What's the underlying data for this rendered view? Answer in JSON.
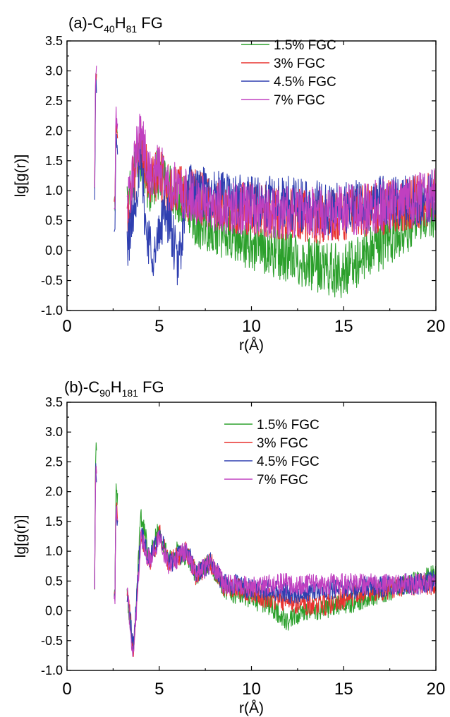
{
  "chart_data": [
    {
      "type": "line",
      "title": "(a)-C40H81 FG",
      "title_parts": {
        "prefix": "(a)-C",
        "sub1": "40",
        "mid": "H",
        "sub2": "81",
        "suffix": " FG"
      },
      "xlabel": "r(Å)",
      "ylabel": "lg[g(r)]",
      "xlim": [
        0,
        20
      ],
      "ylim": [
        -1.0,
        3.5
      ],
      "xticks": [
        "0",
        "5",
        "10",
        "15",
        "20"
      ],
      "yticks": [
        "-1.0",
        "-0.5",
        "0.0",
        "0.5",
        "1.0",
        "1.5",
        "2.0",
        "2.5",
        "3.0",
        "3.5"
      ],
      "legend_position": "top-right",
      "grid": false,
      "series": [
        {
          "name": "1.5% FGC",
          "color": "#2ca02c",
          "x": [
            1.5,
            1.55,
            2.6,
            2.65,
            3.3,
            4.0,
            4.5,
            5.0,
            5.5,
            6.0,
            6.5,
            7,
            8,
            9,
            10,
            11,
            12,
            13,
            14,
            15,
            16,
            17,
            18,
            19,
            20
          ],
          "y": [
            1.0,
            2.9,
            0.8,
            2.0,
            1.0,
            1.6,
            1.0,
            1.3,
            1.0,
            0.9,
            0.8,
            0.5,
            0.4,
            0.2,
            0.1,
            0.0,
            -0.1,
            -0.2,
            -0.3,
            -0.35,
            -0.1,
            0.1,
            0.3,
            0.5,
            0.7
          ]
        },
        {
          "name": "3% FGC",
          "color": "#e8322e",
          "x": [
            1.5,
            1.55,
            2.6,
            2.65,
            3.3,
            4.0,
            4.5,
            5.0,
            5.5,
            6.0,
            6.5,
            7,
            8,
            9,
            10,
            11,
            12,
            13,
            14,
            15,
            16,
            17,
            18,
            19,
            20
          ],
          "y": [
            1.0,
            3.0,
            0.8,
            2.2,
            0.7,
            1.8,
            1.1,
            1.3,
            1.0,
            1.0,
            0.9,
            0.9,
            0.8,
            0.7,
            0.7,
            0.65,
            0.6,
            0.6,
            0.55,
            0.6,
            0.65,
            0.7,
            0.75,
            0.8,
            0.9
          ]
        },
        {
          "name": "4.5% FGC",
          "color": "#2f3fb0",
          "x": [
            1.5,
            1.55,
            2.6,
            2.65,
            3.3,
            4.0,
            4.3,
            4.8,
            5.3,
            5.8,
            6.0,
            6.3,
            6.5,
            7,
            8,
            9,
            10,
            11,
            12,
            13,
            14,
            15,
            16,
            17,
            18,
            19,
            20
          ],
          "y": [
            0.8,
            2.8,
            0.3,
            1.9,
            0.1,
            1.5,
            0.3,
            -0.1,
            0.8,
            0.1,
            -0.3,
            0.4,
            1.0,
            1.0,
            0.9,
            0.85,
            0.85,
            0.8,
            0.8,
            0.75,
            0.7,
            0.7,
            0.75,
            0.8,
            0.8,
            0.85,
            0.9
          ]
        },
        {
          "name": "7% FGC",
          "color": "#c040c0",
          "x": [
            1.5,
            1.55,
            2.6,
            2.65,
            3.3,
            4.0,
            4.5,
            5.0,
            5.5,
            6.0,
            6.5,
            7,
            8,
            9,
            10,
            11,
            12,
            13,
            14,
            15,
            16,
            17,
            18,
            19,
            20
          ],
          "y": [
            1.0,
            3.05,
            0.7,
            2.3,
            0.8,
            2.0,
            1.2,
            1.4,
            1.1,
            1.0,
            0.9,
            0.85,
            0.75,
            0.7,
            0.7,
            0.65,
            0.65,
            0.65,
            0.6,
            0.65,
            0.7,
            0.75,
            0.8,
            0.85,
            0.95
          ]
        }
      ]
    },
    {
      "type": "line",
      "title": "(b)-C90H181 FG",
      "title_parts": {
        "prefix": "(b)-C",
        "sub1": "90",
        "mid": "H",
        "sub2": "181",
        "suffix": " FG"
      },
      "xlabel": "r(Å)",
      "ylabel": "lg[g(r)]",
      "xlim": [
        0,
        20
      ],
      "ylim": [
        -1.0,
        3.5
      ],
      "xticks": [
        "0",
        "5",
        "10",
        "15",
        "20"
      ],
      "yticks": [
        "-1.0",
        "-0.5",
        "0.0",
        "0.5",
        "1.0",
        "1.5",
        "2.0",
        "2.5",
        "3.0",
        "3.5"
      ],
      "legend_position": "top-right",
      "grid": false,
      "series": [
        {
          "name": "1.5% FGC",
          "color": "#2ca02c",
          "x": [
            1.5,
            1.55,
            2.6,
            2.65,
            3.3,
            3.6,
            4.0,
            4.5,
            5.0,
            5.5,
            6.0,
            6.5,
            7,
            7.8,
            8.5,
            9,
            10,
            11,
            12,
            13,
            14,
            15,
            16,
            17,
            18,
            19,
            20
          ],
          "y": [
            0.5,
            2.75,
            0.2,
            2.1,
            0.2,
            -0.7,
            1.6,
            0.9,
            1.4,
            0.8,
            1.0,
            0.9,
            0.6,
            0.8,
            0.4,
            0.3,
            0.2,
            0.1,
            -0.2,
            0.0,
            0.05,
            0.1,
            0.2,
            0.3,
            0.4,
            0.5,
            0.6
          ]
        },
        {
          "name": "3% FGC",
          "color": "#e8322e",
          "x": [
            1.5,
            1.55,
            2.6,
            2.65,
            3.3,
            3.6,
            4.0,
            4.5,
            5.0,
            5.5,
            6.0,
            6.5,
            7,
            7.8,
            8.5,
            9,
            10,
            11,
            12,
            13,
            14,
            15,
            16,
            17,
            18,
            19,
            20
          ],
          "y": [
            0.5,
            2.45,
            0.2,
            1.8,
            0.2,
            -0.6,
            1.3,
            0.8,
            1.3,
            0.8,
            0.9,
            1.0,
            0.6,
            0.8,
            0.4,
            0.4,
            0.3,
            0.2,
            0.15,
            0.1,
            0.1,
            0.2,
            0.3,
            0.35,
            0.4,
            0.45,
            0.45
          ]
        },
        {
          "name": "4.5% FGC",
          "color": "#2f3fb0",
          "x": [
            1.5,
            1.55,
            2.6,
            2.65,
            3.3,
            3.6,
            4.0,
            4.5,
            5.0,
            5.5,
            6.0,
            6.5,
            7,
            7.8,
            8.5,
            9,
            10,
            11,
            12,
            13,
            14,
            15,
            16,
            17,
            18,
            19,
            20
          ],
          "y": [
            0.5,
            2.4,
            0.2,
            1.75,
            0.2,
            -0.65,
            1.3,
            0.85,
            1.3,
            0.8,
            0.9,
            1.0,
            0.65,
            0.8,
            0.45,
            0.45,
            0.35,
            0.35,
            0.3,
            0.3,
            0.35,
            0.35,
            0.4,
            0.4,
            0.45,
            0.45,
            0.5
          ]
        },
        {
          "name": "7% FGC",
          "color": "#c040c0",
          "x": [
            1.5,
            1.55,
            2.6,
            2.65,
            3.3,
            3.6,
            4.0,
            4.5,
            5.0,
            5.5,
            6.0,
            6.5,
            7,
            7.8,
            8.5,
            9,
            10,
            11,
            12,
            13,
            14,
            15,
            16,
            17,
            18,
            19,
            20
          ],
          "y": [
            0.5,
            2.35,
            0.2,
            1.7,
            0.2,
            -0.8,
            1.25,
            0.8,
            1.25,
            0.75,
            0.9,
            1.0,
            0.6,
            0.8,
            0.45,
            0.45,
            0.4,
            0.45,
            0.45,
            0.45,
            0.45,
            0.45,
            0.45,
            0.45,
            0.45,
            0.45,
            0.5
          ]
        }
      ]
    }
  ]
}
